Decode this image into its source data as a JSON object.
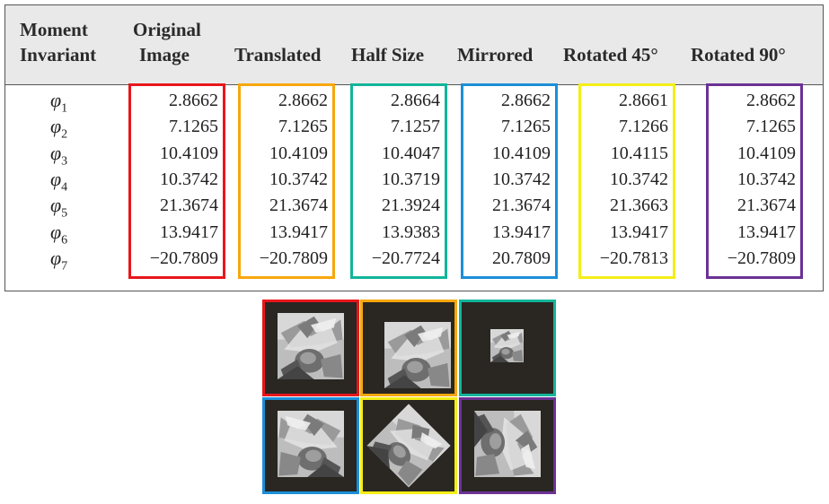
{
  "headers": {
    "moment": [
      "Moment",
      "Invariant"
    ],
    "original": [
      "Original",
      "Image"
    ],
    "translated": "Translated",
    "half_size": "Half Size",
    "mirrored": "Mirrored",
    "rotated45": "Rotated 45°",
    "rotated90": "Rotated 90°"
  },
  "phi_symbol": "φ",
  "phi_subs": [
    "1",
    "2",
    "3",
    "4",
    "5",
    "6",
    "7"
  ],
  "columns": [
    {
      "key": "original",
      "color": "#e8161b",
      "values": [
        "2.8662",
        "7.1265",
        "10.4109",
        "10.3742",
        "21.3674",
        "13.9417",
        "−20.7809"
      ]
    },
    {
      "key": "translated",
      "color": "#f7a70c",
      "values": [
        "2.8662",
        "7.1265",
        "10.4109",
        "10.3742",
        "21.3674",
        "13.9417",
        "−20.7809"
      ]
    },
    {
      "key": "half_size",
      "color": "#12b59a",
      "values": [
        "2.8664",
        "7.1257",
        "10.4047",
        "10.3719",
        "21.3924",
        "13.9383",
        "−20.7724"
      ]
    },
    {
      "key": "mirrored",
      "color": "#1c8fd8",
      "values": [
        "2.8662",
        "7.1265",
        "10.4109",
        "10.3742",
        "21.3674",
        "13.9417",
        "20.7809"
      ]
    },
    {
      "key": "rotated45",
      "color": "#f4ee16",
      "values": [
        "2.8661",
        "7.1266",
        "10.4115",
        "10.3742",
        "21.3663",
        "13.9417",
        "−20.7813"
      ]
    },
    {
      "key": "rotated90",
      "color": "#6b3294",
      "values": [
        "2.8662",
        "7.1265",
        "10.4109",
        "10.3742",
        "21.3674",
        "13.9417",
        "−20.7809"
      ]
    }
  ],
  "images": [
    {
      "name": "original-image-thumbnail",
      "color": "#e8161b",
      "variant": "original"
    },
    {
      "name": "translated-image-thumbnail",
      "color": "#f7a70c",
      "variant": "translated"
    },
    {
      "name": "half-size-image-thumbnail",
      "color": "#12b59a",
      "variant": "half"
    },
    {
      "name": "mirrored-image-thumbnail",
      "color": "#1c8fd8",
      "variant": "mirrored"
    },
    {
      "name": "rotated-45-image-thumbnail",
      "color": "#f4ee16",
      "variant": "rot45"
    },
    {
      "name": "rotated-90-image-thumbnail",
      "color": "#6b3294",
      "variant": "rot90"
    }
  ]
}
